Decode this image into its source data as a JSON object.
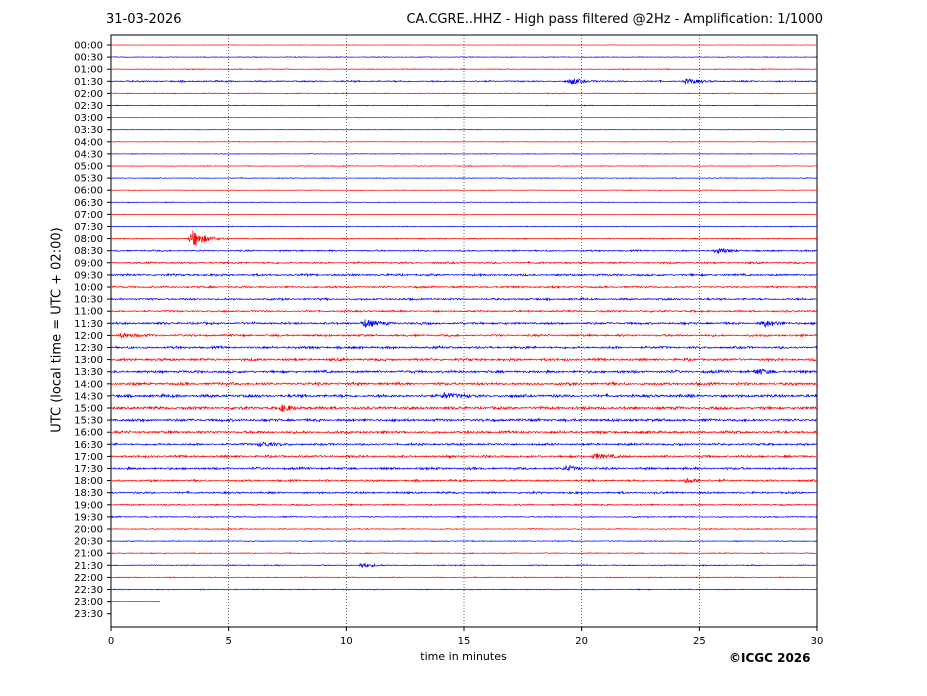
{
  "header": {
    "date": "31-03-2026",
    "title": "CA.CGRE..HHZ - High pass filtered @2Hz - Amplification: 1/1000"
  },
  "footer": {
    "copyright": "©ICGC 2026"
  },
  "chart_data": {
    "type": "line",
    "title": "CA.CGRE..HHZ - High pass filtered @2Hz - Amplification: 1/1000",
    "xlabel": "time in minutes",
    "ylabel": "UTC (local time = UTC + 02:00)",
    "xlim": [
      0,
      30
    ],
    "xticks": [
      0,
      5,
      10,
      15,
      20,
      25,
      30
    ],
    "vertical_gridlines_dotted": [
      5,
      10,
      15,
      20,
      25
    ],
    "grid": "vertical dotted",
    "series_colors": [
      "#ff0000",
      "#0000ff"
    ],
    "rows": [
      "00:00",
      "00:30",
      "01:00",
      "01:30",
      "02:00",
      "02:30",
      "03:00",
      "03:30",
      "04:00",
      "04:30",
      "05:00",
      "05:30",
      "06:00",
      "06:30",
      "07:00",
      "07:30",
      "08:00",
      "08:30",
      "09:00",
      "09:30",
      "10:00",
      "10:30",
      "11:00",
      "11:30",
      "12:00",
      "12:30",
      "13:00",
      "13:30",
      "14:00",
      "14:30",
      "15:00",
      "15:30",
      "16:00",
      "16:30",
      "17:00",
      "17:30",
      "18:00",
      "18:30",
      "19:00",
      "19:30",
      "20:00",
      "20:30",
      "21:00",
      "21:30",
      "22:00",
      "22:30",
      "23:00",
      "23:30"
    ],
    "row_noise_level": [
      0.2,
      0.5,
      0.6,
      1.0,
      0.6,
      0.5,
      0.4,
      0.3,
      0.4,
      0.4,
      0.5,
      0.5,
      0.4,
      0.5,
      0.3,
      0.5,
      0.7,
      1.0,
      1.2,
      1.4,
      1.2,
      1.3,
      1.2,
      1.5,
      1.4,
      1.6,
      1.7,
      1.7,
      1.8,
      1.9,
      1.9,
      1.8,
      1.7,
      1.4,
      1.5,
      1.5,
      1.3,
      1.3,
      1.0,
      0.8,
      0.7,
      0.6,
      0.6,
      0.7,
      0.6,
      0.6,
      0.2,
      0.0
    ],
    "row_end_minutes": [
      30,
      30,
      30,
      30,
      30,
      30,
      30,
      30,
      30,
      30,
      30,
      30,
      30,
      30,
      30,
      30,
      30,
      30,
      30,
      30,
      30,
      30,
      30,
      30,
      30,
      30,
      30,
      30,
      30,
      30,
      30,
      30,
      30,
      30,
      30,
      30,
      30,
      30,
      30,
      30,
      30,
      30,
      30,
      30,
      30,
      30,
      2.1,
      0
    ],
    "events": [
      {
        "row": "08:00",
        "minute": 3.5,
        "amplitude": 9
      },
      {
        "row": "01:30",
        "minute": 19.6,
        "amplitude": 3
      },
      {
        "row": "01:30",
        "minute": 24.5,
        "amplitude": 2.5
      },
      {
        "row": "11:30",
        "minute": 10.8,
        "amplitude": 4
      },
      {
        "row": "11:30",
        "minute": 27.8,
        "amplitude": 3
      },
      {
        "row": "08:30",
        "minute": 25.8,
        "amplitude": 2.5
      },
      {
        "row": "14:30",
        "minute": 14.2,
        "amplitude": 3
      },
      {
        "row": "15:00",
        "minute": 7.3,
        "amplitude": 3
      },
      {
        "row": "17:00",
        "minute": 20.6,
        "amplitude": 3
      },
      {
        "row": "17:30",
        "minute": 19.4,
        "amplitude": 2.5
      },
      {
        "row": "18:00",
        "minute": 24.5,
        "amplitude": 2.5
      },
      {
        "row": "21:30",
        "minute": 10.7,
        "amplitude": 2.5
      },
      {
        "row": "12:00",
        "minute": 0.5,
        "amplitude": 2.5
      },
      {
        "row": "13:30",
        "minute": 27.5,
        "amplitude": 2.5
      },
      {
        "row": "16:30",
        "minute": 6.4,
        "amplitude": 2.5
      }
    ]
  }
}
